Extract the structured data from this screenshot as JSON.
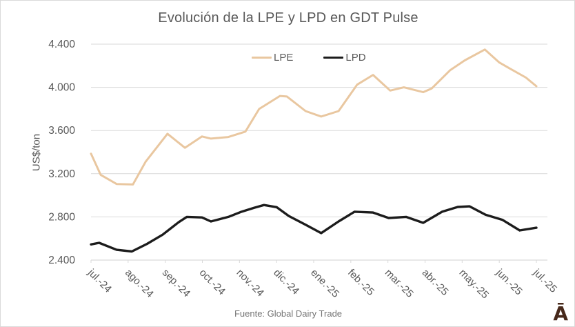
{
  "title": "Evolución de la LPE y LPD en GDT Pulse",
  "footer": {
    "source": "Fuente: Global Dairy Trade"
  },
  "logo": {
    "text": "Ā",
    "color": "#47291b"
  },
  "colors": {
    "grid": "#d9d9d9",
    "axis": "#d9d9d9",
    "tick_text": "#595959",
    "title_text": "#595959",
    "lpe": "#e9c7a0",
    "lpd": "#1c1c1c"
  },
  "chart_data": {
    "type": "line",
    "title": "Evolución de la LPE y LPD en GDT Pulse",
    "ylabel": "US$/ton",
    "xlabel": "",
    "ylim": [
      2400,
      4400
    ],
    "grid": "horizontal",
    "legend_position": "top-center",
    "source_note": "Fuente: Global Dairy Trade",
    "categories": [
      "jul.-24",
      "ago.-24",
      "sep.-24",
      "oct.-24",
      "nov.-24",
      "dic.-24",
      "ene.-25",
      "feb.-25",
      "mar.-25",
      "abr.-25",
      "may.-25",
      "jun.-25",
      "jul.-25"
    ],
    "y_ticks": [
      {
        "value": 2400,
        "label": "2.400"
      },
      {
        "value": 2800,
        "label": "2.800"
      },
      {
        "value": 3200,
        "label": "3.200"
      },
      {
        "value": 3600,
        "label": "3.600"
      },
      {
        "value": 4000,
        "label": "4.000"
      },
      {
        "value": 4400,
        "label": "4.400"
      }
    ],
    "x_unit": "months from jul-24 (0) to jul-25 (12)",
    "value_unit": "US$/ton",
    "series": [
      {
        "name": "LPE",
        "color": "#e9c7a0",
        "stroke_width": 3,
        "points": [
          [
            0,
            3385
          ],
          [
            0.26,
            3190
          ],
          [
            0.69,
            3105
          ],
          [
            1.13,
            3100
          ],
          [
            1.47,
            3310
          ],
          [
            2.06,
            3570
          ],
          [
            2.53,
            3440
          ],
          [
            2.99,
            3545
          ],
          [
            3.23,
            3525
          ],
          [
            3.7,
            3540
          ],
          [
            4.16,
            3590
          ],
          [
            4.53,
            3800
          ],
          [
            5.09,
            3920
          ],
          [
            5.28,
            3915
          ],
          [
            5.78,
            3780
          ],
          [
            6.2,
            3730
          ],
          [
            6.67,
            3780
          ],
          [
            7.17,
            4025
          ],
          [
            7.6,
            4115
          ],
          [
            8.06,
            3970
          ],
          [
            8.43,
            4000
          ],
          [
            8.95,
            3955
          ],
          [
            9.18,
            3990
          ],
          [
            9.68,
            4160
          ],
          [
            10.07,
            4250
          ],
          [
            10.61,
            4350
          ],
          [
            11,
            4230
          ],
          [
            11.28,
            4175
          ],
          [
            11.72,
            4090
          ],
          [
            12,
            4010
          ]
        ]
      },
      {
        "name": "LPD",
        "color": "#1c1c1c",
        "stroke_width": 3.4,
        "points": [
          [
            0,
            2545
          ],
          [
            0.22,
            2560
          ],
          [
            0.69,
            2495
          ],
          [
            1.1,
            2480
          ],
          [
            1.51,
            2550
          ],
          [
            1.93,
            2635
          ],
          [
            2.36,
            2750
          ],
          [
            2.58,
            2800
          ],
          [
            2.99,
            2795
          ],
          [
            3.23,
            2758
          ],
          [
            3.7,
            2800
          ],
          [
            4.03,
            2845
          ],
          [
            4.4,
            2885
          ],
          [
            4.66,
            2910
          ],
          [
            5,
            2890
          ],
          [
            5.33,
            2808
          ],
          [
            5.78,
            2728
          ],
          [
            6.2,
            2650
          ],
          [
            6.67,
            2758
          ],
          [
            7.1,
            2848
          ],
          [
            7.6,
            2840
          ],
          [
            8.02,
            2790
          ],
          [
            8.49,
            2800
          ],
          [
            8.95,
            2745
          ],
          [
            9.46,
            2848
          ],
          [
            9.88,
            2892
          ],
          [
            10.2,
            2898
          ],
          [
            10.63,
            2820
          ],
          [
            11.09,
            2772
          ],
          [
            11.55,
            2675
          ],
          [
            12,
            2700
          ]
        ]
      }
    ]
  }
}
